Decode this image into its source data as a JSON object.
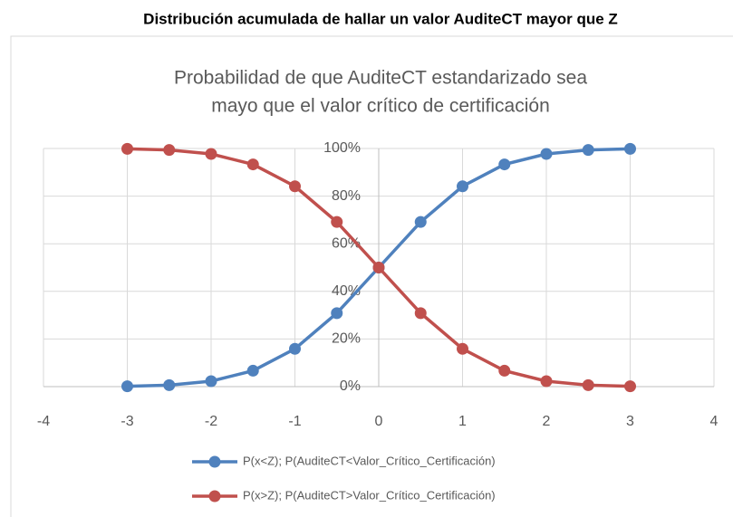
{
  "chart_data": {
    "type": "line",
    "header": "Distribución acumulada de hallar un valor AuditeCT mayor que Z",
    "title": [
      "Probabilidad de que AuditeCT estandarizado sea",
      "mayo que el valor crítico de certificación"
    ],
    "x": [
      -3,
      -2.5,
      -2,
      -1.5,
      -1,
      -0.5,
      0,
      0.5,
      1,
      1.5,
      2,
      2.5,
      3
    ],
    "series": [
      {
        "name": "P(x<Z); P(AuditeCT<Valor_Crítico_Certificación)",
        "color": "#4f81bd",
        "values": [
          0.13,
          0.62,
          2.28,
          6.68,
          15.87,
          30.85,
          50,
          69.15,
          84.13,
          93.32,
          97.72,
          99.38,
          99.87
        ]
      },
      {
        "name": "P(x>Z); P(AuditeCT>Valor_Crítico_Certificación)",
        "color": "#c0504d",
        "values": [
          99.87,
          99.38,
          97.72,
          93.32,
          84.13,
          69.15,
          50,
          30.85,
          15.87,
          6.68,
          2.28,
          0.62,
          0.13
        ]
      }
    ],
    "xlim": [
      -4,
      4
    ],
    "xticks": [
      -4,
      -3,
      -2,
      -1,
      0,
      1,
      2,
      3,
      4
    ],
    "ylim": [
      0,
      100
    ],
    "yticks": [
      {
        "value": 0,
        "label": "0%"
      },
      {
        "value": 20,
        "label": "20%"
      },
      {
        "value": 40,
        "label": "40%"
      },
      {
        "value": 60,
        "label": "60%"
      },
      {
        "value": 80,
        "label": "80%"
      },
      {
        "value": 100,
        "label": "100%"
      }
    ],
    "grid": true,
    "legend": "bottom"
  }
}
